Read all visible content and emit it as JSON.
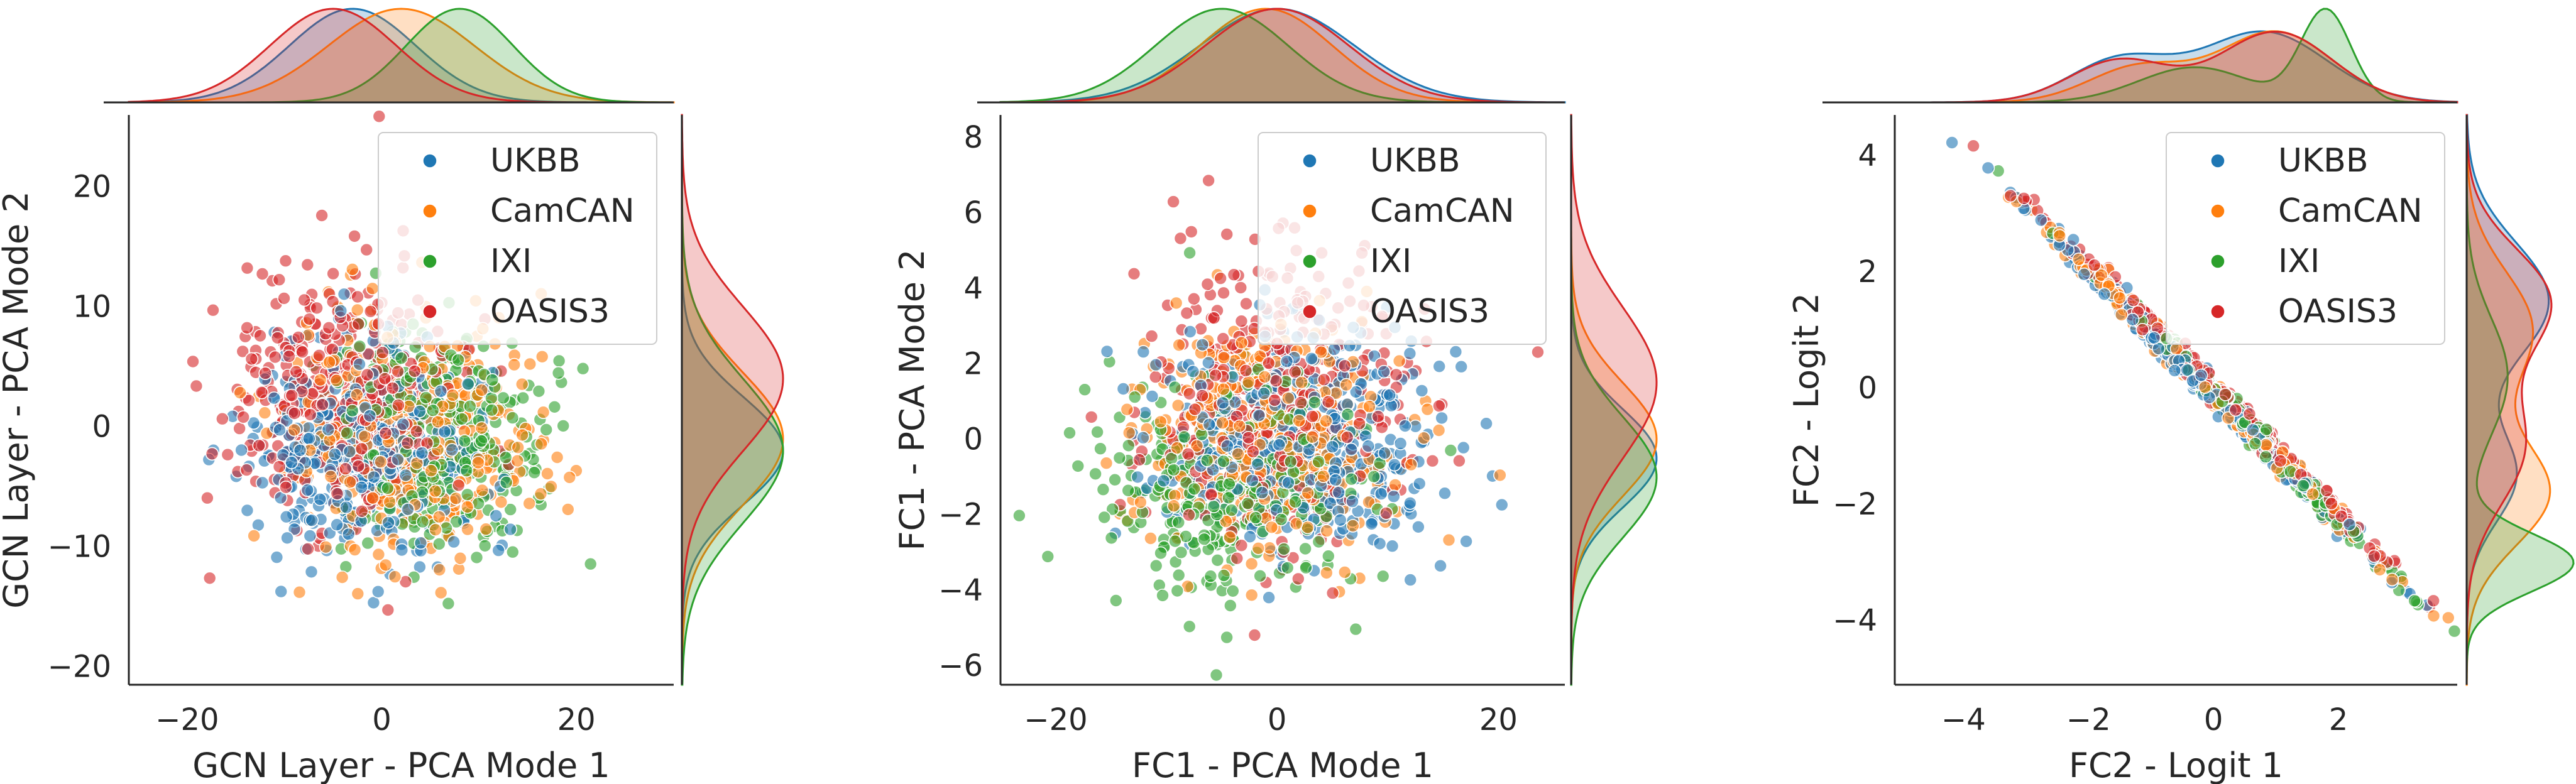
{
  "figure": {
    "datasets": [
      {
        "name": "UKBB",
        "color": "#1f77b4"
      },
      {
        "name": "CamCAN",
        "color": "#ff7f0e"
      },
      {
        "name": "IXI",
        "color": "#2ca02c"
      },
      {
        "name": "OASIS3",
        "color": "#d62728"
      }
    ]
  },
  "chart_data": [
    {
      "type": "scatter",
      "title": "",
      "xlabel": "GCN Layer - PCA Mode 1",
      "ylabel": "GCN Layer - PCA Mode 2",
      "xlim": [
        -26,
        30
      ],
      "ylim": [
        -21.5,
        26
      ],
      "xticks": [
        -20,
        0,
        20
      ],
      "yticks": [
        -20,
        -10,
        0,
        10,
        20
      ],
      "xtick_labels": [
        "−20",
        "0",
        "20"
      ],
      "ytick_labels": [
        "−20",
        "−10",
        "0",
        "10",
        "20"
      ],
      "legend": {
        "position": "top-right",
        "entries": [
          "UKBB",
          "CamCAN",
          "IXI",
          "OASIS3"
        ]
      },
      "marginals": "kde",
      "series": [
        {
          "name": "UKBB",
          "center": [
            -2,
            -2
          ],
          "spread": [
            6,
            4.5
          ],
          "rho": 0,
          "count": 420,
          "marginal_x": [
            [
              -3,
              6.5,
              1
            ]
          ],
          "marginal_y": [
            [
              -2,
              4.5,
              1
            ]
          ]
        },
        {
          "name": "CamCAN",
          "center": [
            2,
            -1
          ],
          "spread": [
            6.5,
            5
          ],
          "rho": 0,
          "count": 380,
          "marginal_x": [
            [
              2,
              7.5,
              1
            ]
          ],
          "marginal_y": [
            [
              -1,
              5.5,
              1
            ]
          ]
        },
        {
          "name": "IXI",
          "center": [
            6,
            -1
          ],
          "spread": [
            6,
            5
          ],
          "rho": 0,
          "count": 300,
          "marginal_x": [
            [
              8,
              5.5,
              1
            ]
          ],
          "marginal_y": [
            [
              -2,
              6,
              1
            ]
          ]
        },
        {
          "name": "OASIS3",
          "center": [
            -4,
            3
          ],
          "spread": [
            6,
            5
          ],
          "rho": 0,
          "count": 380,
          "marginal_x": [
            [
              -5,
              6.5,
              1
            ]
          ],
          "marginal_y": [
            [
              4,
              6,
              1
            ]
          ]
        }
      ]
    },
    {
      "type": "scatter",
      "title": "",
      "xlabel": "FC1 - PCA Mode 1",
      "ylabel": "FC1 - PCA Mode 2",
      "xlim": [
        -25,
        26
      ],
      "ylim": [
        -6.5,
        8.6
      ],
      "xticks": [
        -20,
        0,
        20
      ],
      "yticks": [
        -6,
        -4,
        -2,
        0,
        2,
        4,
        6,
        8
      ],
      "xtick_labels": [
        "−20",
        "0",
        "20"
      ],
      "ytick_labels": [
        "−6",
        "−4",
        "−2",
        "0",
        "2",
        "4",
        "6",
        "8"
      ],
      "legend": {
        "position": "top-right",
        "entries": [
          "UKBB",
          "CamCAN",
          "IXI",
          "OASIS3"
        ]
      },
      "marginals": "kde",
      "series": [
        {
          "name": "UKBB",
          "center": [
            2,
            0
          ],
          "spread": [
            6.5,
            1.5
          ],
          "rho": 0,
          "count": 420,
          "marginal_x": [
            [
              0,
              7,
              1
            ]
          ],
          "marginal_y": [
            [
              -0.5,
              1.3,
              1
            ]
          ]
        },
        {
          "name": "CamCAN",
          "center": [
            -1,
            0
          ],
          "spread": [
            6,
            1.5
          ],
          "rho": 0,
          "count": 380,
          "marginal_x": [
            [
              -1,
              6,
              1
            ]
          ],
          "marginal_y": [
            [
              0,
              1.5,
              1
            ]
          ]
        },
        {
          "name": "IXI",
          "center": [
            -4,
            -1
          ],
          "spread": [
            6,
            1.5
          ],
          "rho": 0,
          "count": 300,
          "marginal_x": [
            [
              -5,
              6,
              1
            ]
          ],
          "marginal_y": [
            [
              -1,
              1.6,
              1
            ]
          ]
        },
        {
          "name": "OASIS3",
          "center": [
            0,
            1
          ],
          "spread": [
            6,
            2
          ],
          "rho": 0,
          "count": 380,
          "marginal_x": [
            [
              0,
              6.5,
              1
            ]
          ],
          "marginal_y": [
            [
              1.5,
              2,
              1
            ]
          ]
        }
      ]
    },
    {
      "type": "scatter",
      "title": "",
      "xlabel": "FC2 - Logit 1",
      "ylabel": "FC2 - Logit 2",
      "xlim": [
        -5.1,
        3.9
      ],
      "ylim": [
        -5.1,
        4.7
      ],
      "xticks": [
        -4,
        -2,
        0,
        2
      ],
      "yticks": [
        -4,
        -2,
        0,
        2,
        4
      ],
      "xtick_labels": [
        "−4",
        "−2",
        "0",
        "2"
      ],
      "ytick_labels": [
        "−4",
        "−2",
        "0",
        "2",
        "4"
      ],
      "legend": {
        "position": "top-right",
        "entries": [
          "UKBB",
          "CamCAN",
          "IXI",
          "OASIS3"
        ]
      },
      "marginals": "kde",
      "series": [
        {
          "name": "UKBB",
          "center": [
            -0.2,
            0.1
          ],
          "spread": [
            1.3,
            1.4
          ],
          "rho": -0.997,
          "count": 340,
          "marginal_x": [
            [
              -1.5,
              0.8,
              0.6
            ],
            [
              0.8,
              1.0,
              1
            ]
          ],
          "marginal_y": [
            [
              1.5,
              1.0,
              1
            ],
            [
              -1.5,
              0.8,
              0.6
            ]
          ]
        },
        {
          "name": "CamCAN",
          "center": [
            0,
            -0.1
          ],
          "spread": [
            1.3,
            1.4
          ],
          "rho": -0.997,
          "count": 300,
          "marginal_x": [
            [
              -1.2,
              0.8,
              0.5
            ],
            [
              1.0,
              0.9,
              1
            ]
          ],
          "marginal_y": [
            [
              1.0,
              1.0,
              0.8
            ],
            [
              -1.8,
              0.9,
              1
            ]
          ]
        },
        {
          "name": "IXI",
          "center": [
            0.5,
            -0.6
          ],
          "spread": [
            1.1,
            1.2
          ],
          "rho": -0.997,
          "count": 260,
          "marginal_x": [
            [
              -0.3,
              0.9,
              0.5
            ],
            [
              1.8,
              0.4,
              1.3
            ]
          ],
          "marginal_y": [
            [
              0.2,
              1.0,
              0.5
            ],
            [
              -3.0,
              0.5,
              1.3
            ]
          ]
        },
        {
          "name": "OASIS3",
          "center": [
            0,
            0
          ],
          "spread": [
            1.3,
            1.4
          ],
          "rho": -0.997,
          "count": 320,
          "marginal_x": [
            [
              -1.5,
              0.8,
              0.6
            ],
            [
              1.0,
              0.9,
              1
            ]
          ],
          "marginal_y": [
            [
              1.5,
              0.9,
              1
            ],
            [
              -1.0,
              1.0,
              0.7
            ]
          ]
        }
      ]
    }
  ]
}
